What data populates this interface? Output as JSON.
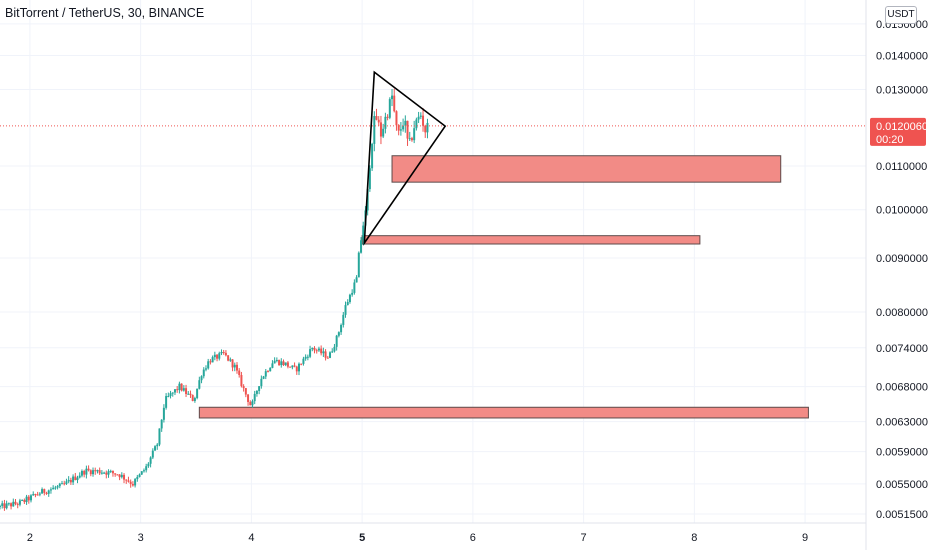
{
  "header": {
    "symbol": "BitTorrent / TetherUS",
    "interval": "30",
    "exchange": "BINANCE",
    "title": "BitTorrent / TetherUS, 30, BINANCE",
    "currency": "USDT"
  },
  "colors": {
    "up": "#26a69a",
    "down": "#ef5350",
    "zone_fill": "#f28b86",
    "zone_stroke": "#5d4a4a",
    "price_line": "#ef5350",
    "grid": "#f0f3fa"
  },
  "chart_data": {
    "type": "candlestick",
    "title": "BitTorrent / TetherUS, 30, BINANCE",
    "y_axis": {
      "scale": "log",
      "ticks": [
        "0.0150000",
        "0.0140000",
        "0.0130000",
        "0.0110000",
        "0.0100000",
        "0.0090000",
        "0.0080000",
        "0.0074000",
        "0.0068000",
        "0.0063000",
        "0.0059000",
        "0.0055000",
        "0.0051500"
      ],
      "range": [
        0.00505,
        0.0158
      ],
      "currency": "USDT"
    },
    "x_axis": {
      "ticks": [
        "2",
        "3",
        "4",
        "5",
        "6",
        "7",
        "8",
        "9"
      ],
      "bold_tick": "5",
      "range": [
        1.73,
        9.55
      ]
    },
    "last_price": {
      "value": "0.0120060",
      "countdown": "00:20"
    },
    "anchors": [
      [
        1.73,
        0.00523
      ],
      [
        1.92,
        0.00528
      ],
      [
        2.1,
        0.0054
      ],
      [
        2.3,
        0.00548
      ],
      [
        2.5,
        0.00566
      ],
      [
        2.65,
        0.00565
      ],
      [
        2.8,
        0.00562
      ],
      [
        2.93,
        0.0055
      ],
      [
        3.05,
        0.0057
      ],
      [
        3.15,
        0.006
      ],
      [
        3.22,
        0.0066
      ],
      [
        3.35,
        0.0068
      ],
      [
        3.48,
        0.0066
      ],
      [
        3.55,
        0.007
      ],
      [
        3.62,
        0.0072
      ],
      [
        3.75,
        0.0073
      ],
      [
        3.85,
        0.0071
      ],
      [
        3.92,
        0.0068
      ],
      [
        4.0,
        0.0065
      ],
      [
        4.08,
        0.0069
      ],
      [
        4.2,
        0.0072
      ],
      [
        4.3,
        0.00715
      ],
      [
        4.4,
        0.00705
      ],
      [
        4.55,
        0.0074
      ],
      [
        4.7,
        0.00725
      ],
      [
        4.78,
        0.0076
      ],
      [
        4.85,
        0.0081
      ],
      [
        4.95,
        0.0086
      ],
      [
        5.0,
        0.0096
      ],
      [
        5.04,
        0.01
      ],
      [
        5.08,
        0.0115
      ],
      [
        5.12,
        0.0123
      ],
      [
        5.17,
        0.0118
      ],
      [
        5.22,
        0.0123
      ],
      [
        5.27,
        0.0128
      ],
      [
        5.32,
        0.0117
      ],
      [
        5.38,
        0.0122
      ],
      [
        5.42,
        0.0114
      ],
      [
        5.47,
        0.012
      ],
      [
        5.53,
        0.0123
      ],
      [
        5.57,
        0.0119
      ],
      [
        5.6,
        0.012
      ]
    ],
    "zones": [
      {
        "x_start": 5.27,
        "x_end": 8.78,
        "y_top": 0.01125,
        "y_bottom": 0.01062
      },
      {
        "x_start": 5.0,
        "x_end": 8.05,
        "y_top": 0.00945,
        "y_bottom": 0.00928
      },
      {
        "x_start": 3.53,
        "x_end": 9.03,
        "y_top": 0.0065,
        "y_bottom": 0.00635
      }
    ],
    "triangle": [
      [
        5.11,
        0.0135
      ],
      [
        5.75,
        0.012
      ],
      [
        5.02,
        0.0093
      ]
    ]
  }
}
